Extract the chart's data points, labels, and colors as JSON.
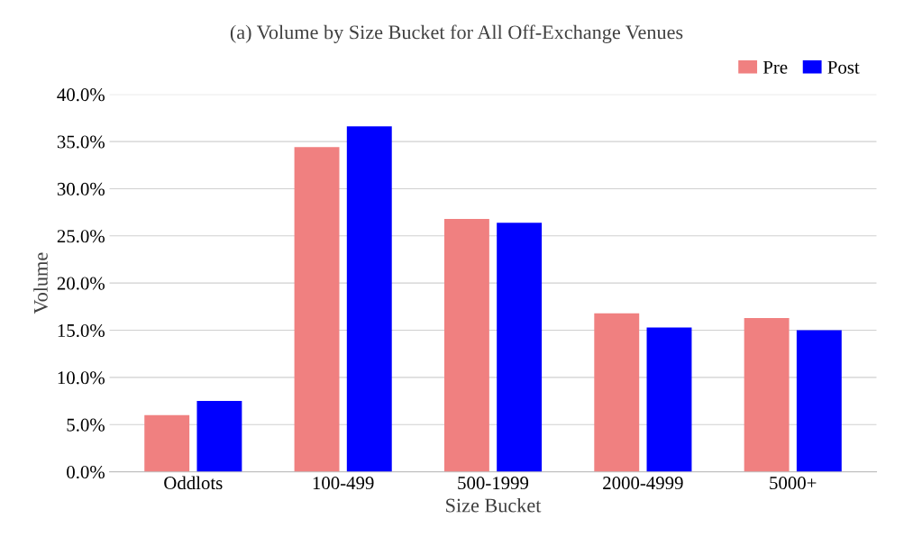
{
  "chart_data": {
    "type": "bar",
    "title": "(a) Volume by Size Bucket for All Off-Exchange Venues",
    "xlabel": "Size Bucket",
    "ylabel": "Volume",
    "categories": [
      "Oddlots",
      "100-499",
      "500-1999",
      "2000-4999",
      "5000+"
    ],
    "series": [
      {
        "name": "Pre",
        "color": "#f08080",
        "values": [
          6.0,
          34.4,
          26.8,
          16.8,
          16.3
        ]
      },
      {
        "name": "Post",
        "color": "#0000ff",
        "values": [
          7.5,
          36.6,
          26.4,
          15.3,
          15.0
        ]
      }
    ],
    "ylim": [
      0,
      40
    ],
    "yticks": [
      {
        "value": 0,
        "label": "0.0%"
      },
      {
        "value": 5,
        "label": "5.0%"
      },
      {
        "value": 10,
        "label": "10.0%"
      },
      {
        "value": 15,
        "label": "15.0%"
      },
      {
        "value": 20,
        "label": "20.0%"
      },
      {
        "value": 25,
        "label": "25.0%"
      },
      {
        "value": 30,
        "label": "30.0%"
      },
      {
        "value": 35,
        "label": "35.0%"
      },
      {
        "value": 40,
        "label": "40.0%"
      }
    ],
    "grid": "y",
    "legend": "top right"
  }
}
